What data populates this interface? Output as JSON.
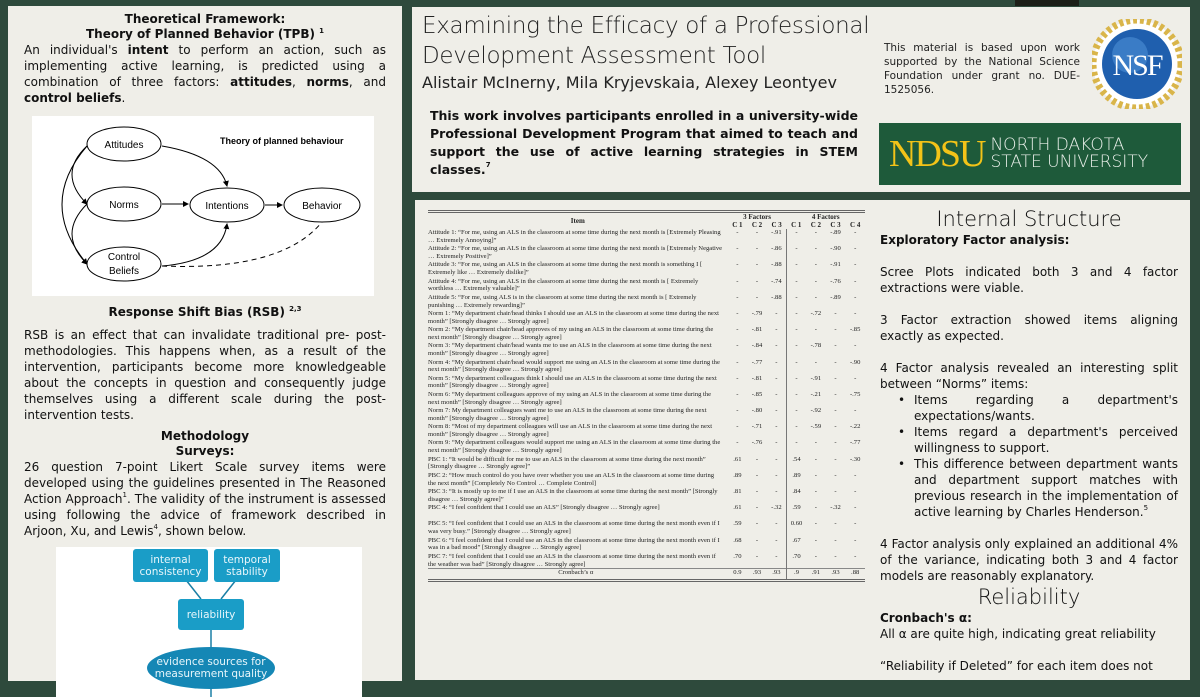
{
  "left": {
    "tpb_heading": "Theoretical Framework:",
    "tpb_subheading": "Theory of Planned Behavior (TPB)",
    "tpb_ref": "1",
    "tpb_text": [
      "An individual's ",
      "intent",
      " to perform an action, such as implementing active learning, is predicted using a combination of three factors: ",
      "attitudes",
      ", ",
      "norms",
      ", and ",
      "control beliefs",
      "."
    ],
    "tpb_diagram": {
      "title": "Theory of planned behaviour",
      "nodes": [
        "Attitudes",
        "Norms",
        "Control",
        "Beliefs",
        "Intentions",
        "Behavior"
      ]
    },
    "rsb_heading": "Response Shift Bias (RSB)",
    "rsb_ref": "2,3",
    "rsb_text": "RSB is an effect that can invalidate traditional  pre- post- methodologies.  This happens when, as a result of the intervention, participants become more knowledgeable about the concepts in question and consequently judge themselves using a different scale during the post-intervention tests.",
    "method_heading": "Methodology",
    "surveys_heading": "Surveys:",
    "method_text_1": "26 question 7-point Likert Scale survey items were developed using the guidelines presented in The Reasoned Action Approach",
    "method_ref_1": "1",
    "method_text_2": ".  The validity of the instrument is assessed using following the advice of framework described in Arjoon, Xu, and Lewis",
    "method_ref_2": "4",
    "method_text_3": ", shown below.",
    "framework_diagram": {
      "internal": "internal consistency",
      "temporal": "temporal stability",
      "reliability": "reliability",
      "evidence": "evidence sources for measurement quality"
    }
  },
  "header": {
    "title_line1": "Examining the Efficacy of a Professional",
    "title_line2": "Development Assessment Tool",
    "authors": "Alistair McInerny, Mila Kryjevskaia, Alexey Leontyev",
    "intro": "This work involves participants enrolled in a university-wide Professional Development Program that aimed to teach and support the use of active learning strategies in STEM classes.",
    "intro_ref": "7",
    "funding": "This material is based upon work supported by the National Science Foundation under grant no. DUE-1525056.",
    "nsf_logo": "NSF",
    "ndsu_logo": "NDSU",
    "ndsu_line1": "NORTH DAKOTA",
    "ndsu_line2": "STATE UNIVERSITY",
    "colors": {
      "background": "#2e4a3c",
      "ndsu_green": "#1e5a3a",
      "ndsu_gold": "#f3c318",
      "diagram_blue": "#1a9dc7"
    }
  },
  "table": {
    "item_header": "Item",
    "group3": "3 Factors",
    "group4": "4 Factors",
    "cols": [
      "C 1",
      "C 2",
      "C 3",
      "C 1",
      "C 2",
      "C 3",
      "C 4"
    ],
    "rows": [
      {
        "label": "Attitude 1:",
        "text": " “For me, using an ALS in the classroom at some time during the next month is [Extremely Pleasing … Extremely Annoying]”",
        "v": [
          "-",
          "-",
          "-.91",
          "-",
          "-",
          "-.89",
          "-"
        ]
      },
      {
        "label": "Attitude 2:",
        "text": " “For me, using an ALS in the classroom at some time during the next month is [Extremely Negative … Extremely Positive]”",
        "v": [
          "-",
          "-",
          "-.86",
          "-",
          "-",
          "-.90",
          "-"
        ]
      },
      {
        "label": "Attitude 3:",
        "text": " “For me, using an ALS in the classroom at some time during the next month is something I [ Extremely like … Extremely dislike]”",
        "v": [
          "-",
          "-",
          "-.88",
          "-",
          "-",
          "-.91",
          "-"
        ]
      },
      {
        "label": "Attitude 4:",
        "text": " “For me, using an ALS in the classroom at some time during the next month is [ Extremely worthless … Extremely valuable]”",
        "v": [
          "-",
          "-",
          "-.74",
          "-",
          "-",
          "-.76",
          "-"
        ]
      },
      {
        "label": "Attitude 5:",
        "text": " “For me, using ALS is in the classroom at some time during the next month is [ Extremely punishing … Extremely rewarding]”",
        "v": [
          "-",
          "-",
          "-.88",
          "-",
          "-",
          "-.89",
          "-"
        ]
      },
      {
        "label": "Norm 1:",
        "text": " “My department chair/head thinks I should use an ALS in the classroom at some time during the next month” [Strongly disagree … Strongly agree]",
        "v": [
          "-",
          "-.79",
          "-",
          "-",
          "-.72",
          "-",
          "-"
        ]
      },
      {
        "label": "Norm 2:",
        "text": " “My department chair/head approves of my using an ALS in the classroom at some time during the next month” [Strongly disagree … Strongly agree]",
        "v": [
          "-",
          "-.81",
          "-",
          "-",
          "-",
          "-",
          "-.85"
        ]
      },
      {
        "label": "Norm 3:",
        "text": " “My department chair/head wants me to use an ALS in the classroom at some time during the next month” [Strongly disagree … Strongly agree]",
        "v": [
          "-",
          "-.84",
          "-",
          "-",
          "-.78",
          "-",
          "-"
        ]
      },
      {
        "label": "Norm 4:",
        "text": " “My department chair/head would support me using an ALS in the classroom at some time during the next month” [Strongly disagree … Strongly agree]",
        "v": [
          "-",
          "-.77",
          "-",
          "-",
          "-",
          "-",
          "-.90"
        ]
      },
      {
        "label": "Norm 5:",
        "text": " “My department colleagues think I should use an ALS in the classroom at some time during the next month” [Strongly disagree … Strongly agree]",
        "v": [
          "-",
          "-.81",
          "-",
          "-",
          "-.91",
          "-",
          "-"
        ]
      },
      {
        "label": "Norm 6:",
        "text": " “My department colleagues approve of my using an ALS in the classroom at some time during the next month” [Strongly disagree … Strongly agree]",
        "v": [
          "-",
          "-.85",
          "-",
          "-",
          "-.21",
          "-",
          "-.75"
        ]
      },
      {
        "label": "Norm 7:",
        "text": " My department colleagues want me to use an ALS in the classroom at some time during the next month” [Strongly disagree … Strongly agree]",
        "v": [
          "-",
          "-.80",
          "-",
          "-",
          "-.92",
          "-",
          "-"
        ]
      },
      {
        "label": "Norm 8:",
        "text": " “Most of my department colleagues will use an ALS in the classroom at some time during the next month” [Strongly disagree … Strongly agree]",
        "v": [
          "-",
          "-.71",
          "-",
          "-",
          "-.59",
          "-",
          "-.22"
        ]
      },
      {
        "label": "Norm 9:",
        "text": " “My department colleagues would support me using an ALS in the classroom at some time during the next month” [Strongly disagree … Strongly agree]",
        "v": [
          "-",
          "-.76",
          "-",
          "-",
          "-",
          "-",
          "-.77"
        ]
      },
      {
        "label": "PBC 1:",
        "text": " “It would be difficult for me to use an ALS in the classroom at some time during the next month” [Strongly disagree … Strongly agree]”",
        "v": [
          ".61",
          "-",
          "-",
          ".54",
          "-",
          "-",
          "-.30"
        ]
      },
      {
        "label": "PBC 2:",
        "text": " “How much control do you have over whether you use an ALS in the classroom at some time during the next month” [Completely No Control … Complete Control]",
        "v": [
          ".89",
          "-",
          "-",
          ".89",
          "-",
          "-",
          "-"
        ]
      },
      {
        "label": "PBC 3:",
        "text": " “It is mostly up to me if I use an ALS in the classroom at some time during the next month” [Strongly disagree … Strongly agree]”",
        "v": [
          ".81",
          "-",
          "-",
          ".84",
          "-",
          "-",
          "-"
        ]
      },
      {
        "label": "PBC 4:",
        "text": " “I feel confident that I could use an ALS” [Strongly disagree … Strongly agree]",
        "v": [
          ".61",
          "-",
          "-.32",
          ".59",
          "-",
          "-.32",
          "-"
        ]
      },
      {
        "label": "PBC 5:",
        "text": " “I feel confident that I could use an ALS in the classroom at some time during the next month even if I was very busy.” [Strongly disagree … Strongly agree]",
        "v": [
          ".59",
          "-",
          "-",
          "0.60",
          "-",
          "-",
          "-"
        ]
      },
      {
        "label": "PBC 6:",
        "text": " “I feel confident that I could use an ALS in the classroom at some time during the next month even if I was in a bad mood” [Strongly disagree … Strongly agree]",
        "v": [
          ".68",
          "-",
          "-",
          ".67",
          "-",
          "-",
          "-"
        ]
      },
      {
        "label": "PBC 7:",
        "text": " “I feel confident that I could use an ALS in the classroom at some time during the next month even if the weather was bad” [Strongly disagree … Strongly agree]",
        "v": [
          ".70",
          "-",
          "-",
          ".70",
          "-",
          "-",
          "-"
        ]
      }
    ],
    "footer_label": "Cronbach’s α",
    "footer": [
      "0.9",
      ".93",
      ".93",
      ".9",
      ".91",
      ".93",
      ".88"
    ]
  },
  "right": {
    "internal_heading": "Internal Structure",
    "efa_heading": "Exploratory Factor analysis:",
    "p1": "Scree Plots indicated both 3 and 4 factor extractions were viable.",
    "p2": "3 Factor extraction showed items aligning exactly as expected.",
    "p3": "4 Factor analysis revealed an interesting split between “Norms” items:",
    "bullets": [
      "Items regarding a department's expectations/wants.",
      "Items regard a department's perceived willingness to support.",
      "This difference between department wants and department support matches with previous research in the implementation of active learning by Charles Henderson."
    ],
    "bullet_ref": "5",
    "p4": "4 Factor analysis only explained an additional 4% of the variance, indicating both 3 and 4 factor models are reasonably explanatory.",
    "reliability_heading": "Reliability",
    "cronbach_heading": "Cronbach's α:",
    "p5": "All α are quite high, indicating great reliability",
    "p6": "“Reliability if Deleted” for each item does not"
  }
}
